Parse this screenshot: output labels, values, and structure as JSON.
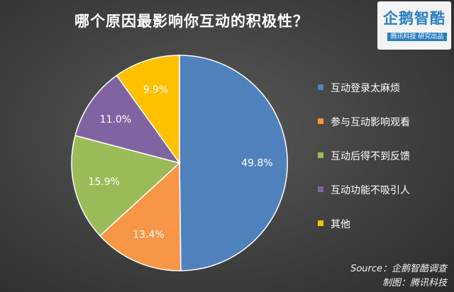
{
  "logo": {
    "main": "企鹅智酷",
    "sub": "腾讯科技 研究出品"
  },
  "chart_data": {
    "type": "pie",
    "title": "哪个原因最影响你互动的积极性？",
    "slices": [
      {
        "label": "互动登录太麻烦",
        "value": 49.8,
        "display": "49.8%",
        "color": "#4f81bd"
      },
      {
        "label": "参与互动影响观看",
        "value": 13.4,
        "display": "13.4%",
        "color": "#f79646"
      },
      {
        "label": "互动后得不到反馈",
        "value": 15.9,
        "display": "15.9%",
        "color": "#9bbb59"
      },
      {
        "label": "互动功能不吸引人",
        "value": 11.0,
        "display": "11.0%",
        "color": "#8064a2"
      },
      {
        "label": "其他",
        "value": 9.9,
        "display": "9.9%",
        "color": "#ffc000"
      }
    ],
    "legend_position": "right"
  },
  "footer": {
    "source": "Source：企鹅智酷调查",
    "credit": "制图：腾讯科技"
  }
}
